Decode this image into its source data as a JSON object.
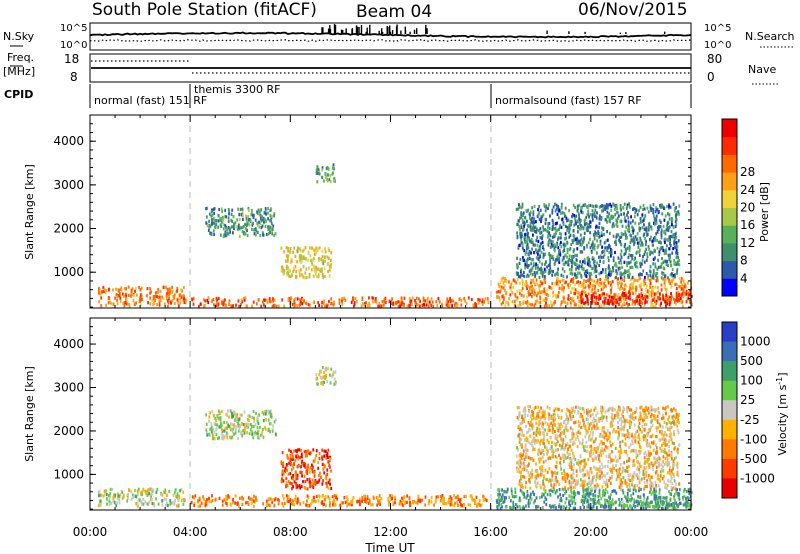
{
  "header": {
    "station": "South Pole Station (fitACF)",
    "beam": "Beam 04",
    "date": "06/Nov/2015"
  },
  "nsky_panel": {
    "left_label": "N.Sky",
    "left_ticks": [
      "10^5",
      "10^0"
    ],
    "right_label": "N.Search",
    "right_ticks": [
      "10^5",
      "10^0"
    ]
  },
  "freq_panel": {
    "left_label": "Freq.",
    "left_unit": "[MHz]",
    "left_ticks": [
      "18",
      "8"
    ],
    "right_label": "Nave",
    "right_ticks": [
      "80",
      "0"
    ]
  },
  "cpid_panel": {
    "label": "CPID",
    "modes": [
      {
        "name": "normal (fast) 151 RF",
        "start_h": 0,
        "end_h": 4
      },
      {
        "name": "themis 3300 RF",
        "start_h": 4,
        "end_h": 16
      },
      {
        "name": "normalsound (fast) 157 RF",
        "start_h": 16,
        "end_h": 24
      }
    ]
  },
  "time_axis": {
    "label": "Time UT",
    "ticks": [
      "00:00",
      "04:00",
      "08:00",
      "12:00",
      "16:00",
      "20:00",
      "00:00"
    ]
  },
  "chart_data": [
    {
      "type": "heatmap",
      "title": "",
      "xlabel": "Time UT",
      "ylabel": "Slant Range [km]",
      "xlim": [
        0,
        24
      ],
      "ylim": [
        180,
        4600
      ],
      "yticks": [
        "1000",
        "2000",
        "3000",
        "4000"
      ],
      "yticks_values": [
        1000,
        2000,
        3000,
        4000
      ],
      "colorbar": {
        "label": "Power [dB]",
        "ticks": [
          "4",
          "8",
          "12",
          "16",
          "20",
          "24",
          "28"
        ],
        "values": [
          4,
          8,
          12,
          16,
          20,
          24,
          28
        ],
        "colors": [
          "#0000ff",
          "#2b5aaa",
          "#3e8f6b",
          "#57b05a",
          "#a8c84a",
          "#f0d23c",
          "#ff9f1a",
          "#ff6a00",
          "#ff2a00",
          "#ee0000"
        ]
      },
      "regions": [
        {
          "t0": 0.3,
          "t1": 3.8,
          "r0": 250,
          "r1": 700,
          "level": 0.75
        },
        {
          "t0": 4.6,
          "t1": 7.4,
          "r0": 1850,
          "r1": 2500,
          "level": 0.25
        },
        {
          "t0": 7.6,
          "t1": 9.6,
          "r0": 900,
          "r1": 1600,
          "level": 0.55
        },
        {
          "t0": 9.0,
          "t1": 9.8,
          "r0": 3100,
          "r1": 3500,
          "level": 0.3
        },
        {
          "t0": 4.0,
          "t1": 15.9,
          "r0": 250,
          "r1": 450,
          "level": 0.8
        },
        {
          "t0": 16.2,
          "t1": 24.0,
          "r0": 250,
          "r1": 900,
          "level": 0.7
        },
        {
          "t0": 17.0,
          "t1": 23.5,
          "r0": 900,
          "r1": 2600,
          "level": 0.2
        },
        {
          "t0": 19.5,
          "t1": 24.0,
          "r0": 300,
          "r1": 550,
          "level": 0.95
        }
      ]
    },
    {
      "type": "heatmap",
      "title": "",
      "xlabel": "Time UT",
      "ylabel": "Slant Range [km]",
      "xlim": [
        0,
        24
      ],
      "ylim": [
        180,
        4600
      ],
      "yticks": [
        "1000",
        "2000",
        "3000",
        "4000"
      ],
      "yticks_values": [
        1000,
        2000,
        3000,
        4000
      ],
      "colorbar": {
        "label": "Velocity [m s^-1]",
        "ticks": [
          "1000",
          "500",
          "100",
          "25",
          "-25",
          "-100",
          "-500",
          "-1000"
        ],
        "values": [
          1000,
          500,
          100,
          25,
          -25,
          -100,
          -500,
          -1000
        ],
        "colors": [
          "#2a3fc8",
          "#3a6fb8",
          "#3e9f6b",
          "#66c94a",
          "#c8c8c0",
          "#ffb000",
          "#ff7a00",
          "#ff3a00",
          "#e80000"
        ]
      },
      "regions": [
        {
          "t0": 0.3,
          "t1": 3.8,
          "r0": 300,
          "r1": 700,
          "level": 0.45
        },
        {
          "t0": 4.6,
          "t1": 7.4,
          "r0": 1850,
          "r1": 2500,
          "level": 0.45
        },
        {
          "t0": 7.6,
          "t1": 9.6,
          "r0": 700,
          "r1": 1600,
          "level": 0.85
        },
        {
          "t0": 9.0,
          "t1": 9.8,
          "r0": 3100,
          "r1": 3500,
          "level": 0.45
        },
        {
          "t0": 4.0,
          "t1": 15.9,
          "r0": 300,
          "r1": 550,
          "level": 0.75
        },
        {
          "t0": 16.2,
          "t1": 24.0,
          "r0": 250,
          "r1": 700,
          "level": 0.25
        },
        {
          "t0": 17.0,
          "t1": 23.5,
          "r0": 700,
          "r1": 2600,
          "level": 0.6
        },
        {
          "t0": 20.0,
          "t1": 24.0,
          "r0": 250,
          "r1": 450,
          "level": 0.3
        }
      ]
    }
  ]
}
